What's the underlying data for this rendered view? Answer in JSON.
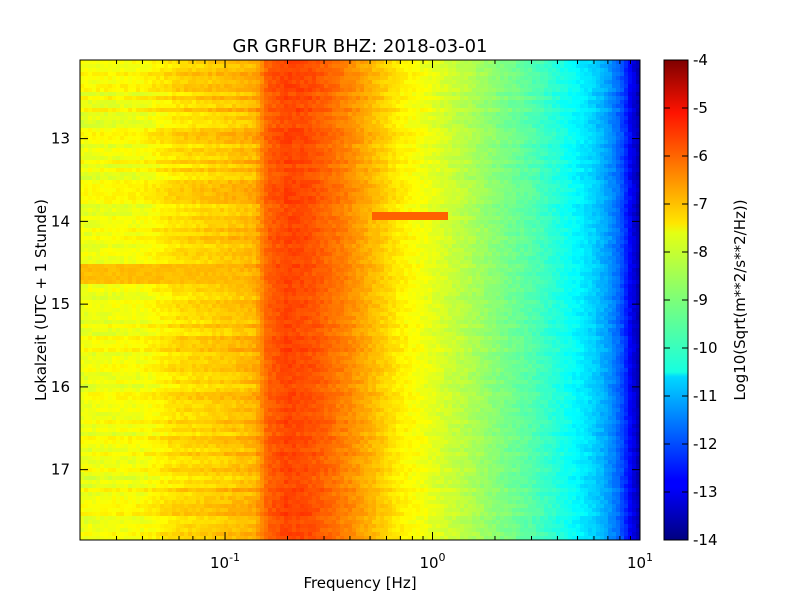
{
  "chart_data": {
    "type": "heatmap",
    "title": "GR GRFUR BHZ: 2018-03-01",
    "xlabel": "Frequency [Hz]",
    "ylabel": "Lokalzeit (UTC + 1 Stunde)",
    "colorbar_label": "Log10(Sqrt(m**2/s**2/Hz))",
    "x_scale": "log",
    "xlim": [
      0.02,
      10
    ],
    "x_ticks": [
      {
        "value": 0.1,
        "base": "10",
        "exp": "-1"
      },
      {
        "value": 1,
        "base": "10",
        "exp": "0"
      },
      {
        "value": 10,
        "base": "10",
        "exp": "1"
      }
    ],
    "ylim": [
      12.05,
      17.85
    ],
    "y_inverted": true,
    "y_ticks": [
      "13",
      "14",
      "15",
      "16",
      "17"
    ],
    "clim": [
      -14,
      -4
    ],
    "colorbar_ticks": [
      "-4",
      "-5",
      "-6",
      "-7",
      "-8",
      "-9",
      "-10",
      "-11",
      "-12",
      "-13",
      "-14"
    ],
    "colormap": "jet",
    "spectrum_profile": {
      "frequency_hz": [
        0.02,
        0.04,
        0.06,
        0.08,
        0.1,
        0.12,
        0.14,
        0.16,
        0.2,
        0.25,
        0.3,
        0.4,
        0.5,
        0.7,
        1.0,
        1.5,
        2.0,
        3.0,
        4.0,
        5.0,
        6.0,
        7.0,
        8.0,
        9.0,
        10.0
      ],
      "log10_amplitude": [
        -7.9,
        -7.8,
        -7.4,
        -7.3,
        -7.2,
        -7.1,
        -7.0,
        -6.2,
        -5.9,
        -6.0,
        -6.2,
        -6.6,
        -7.0,
        -7.6,
        -8.0,
        -8.5,
        -8.9,
        -9.4,
        -9.9,
        -10.3,
        -10.7,
        -11.2,
        -11.8,
        -12.8,
        -13.6
      ]
    },
    "events": [
      {
        "time": 14.62,
        "fmax_hz": 0.12,
        "log10_amplitude": -7.1
      },
      {
        "time": 13.93,
        "fmin_hz": 0.5,
        "fmax_hz": 1.2,
        "log10_amplitude": -6.2
      }
    ]
  }
}
